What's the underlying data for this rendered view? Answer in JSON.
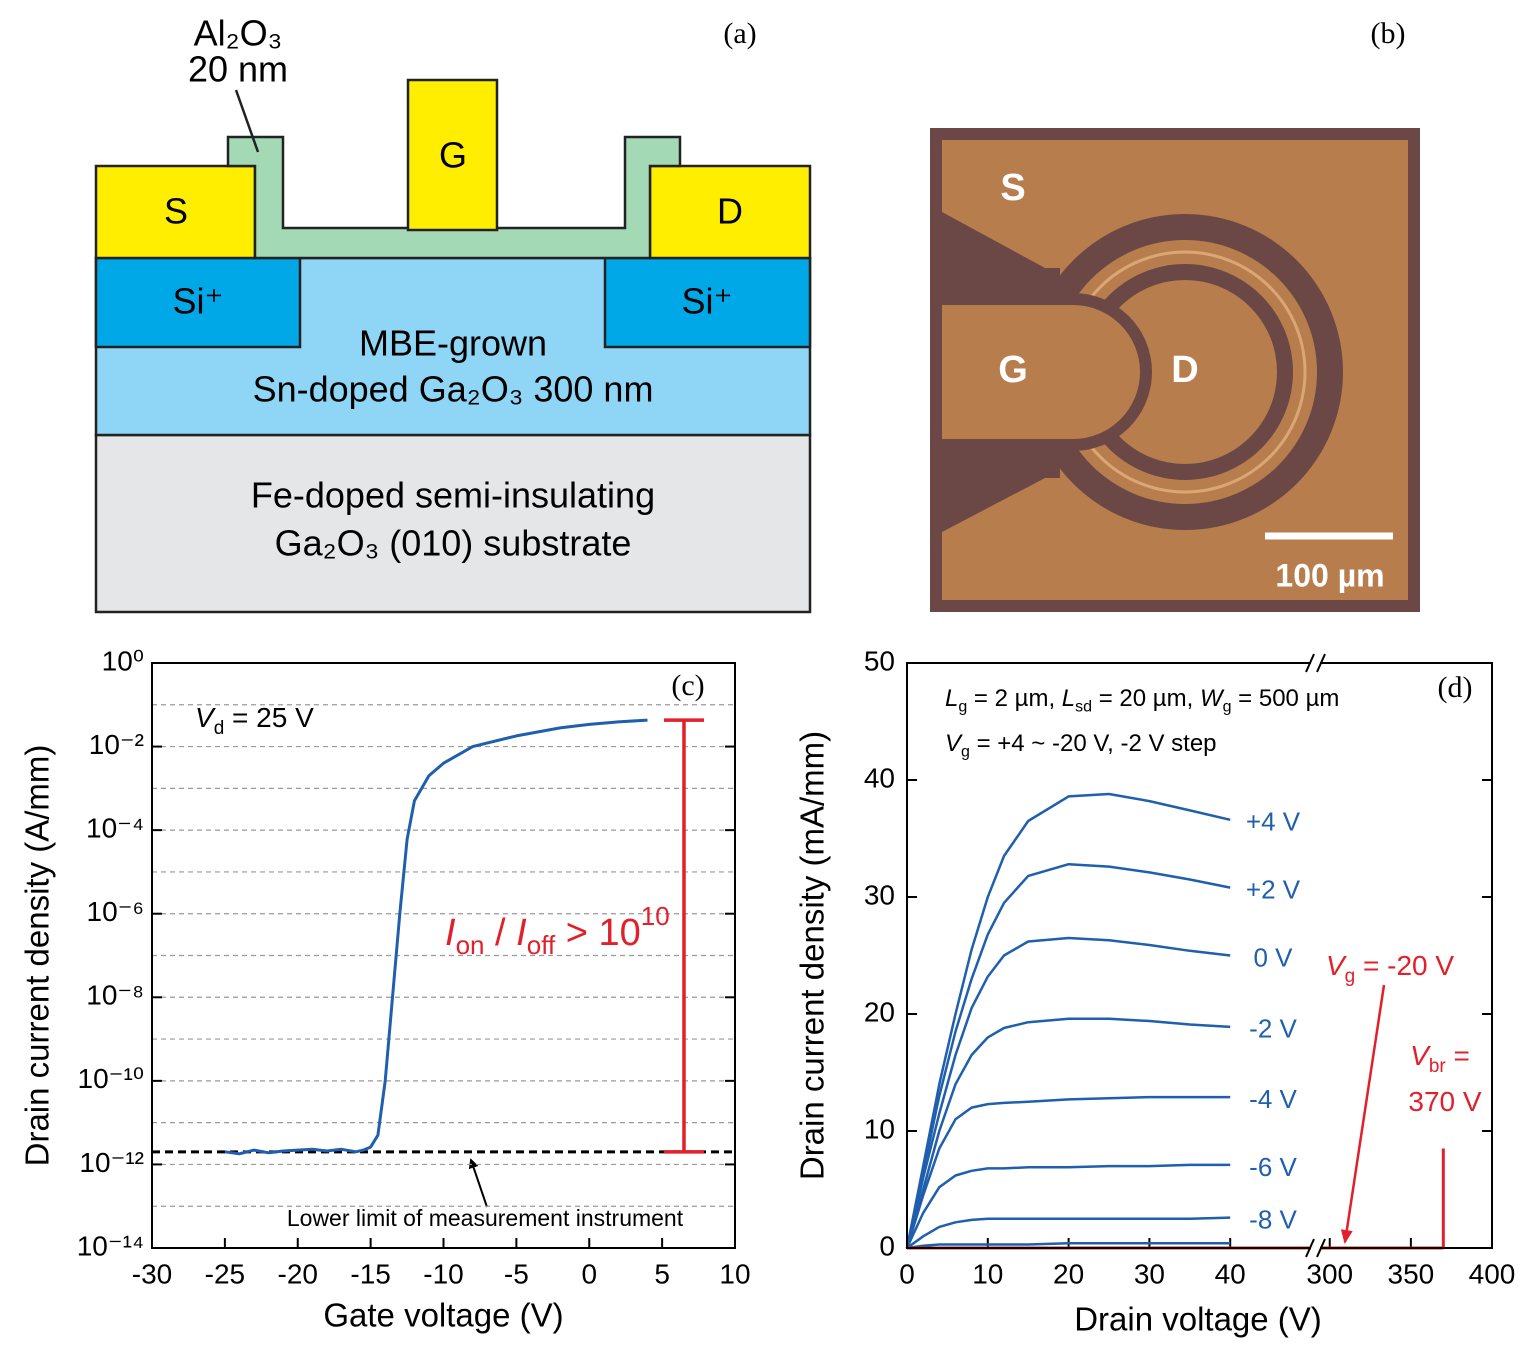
{
  "diagram": {
    "label": "(a)",
    "layers": {
      "oxide": [
        "Al₂O₃",
        "20 nm"
      ],
      "source": "S",
      "gate": "G",
      "drain": "D",
      "implant_left": "Si⁺",
      "implant_right": "Si⁺",
      "channel": [
        "MBE-grown",
        "Sn-doped Ga₂O₃ 300 nm"
      ],
      "substrate": [
        "Fe-doped semi-insulating",
        "Ga₂O₃ (010) substrate"
      ]
    }
  },
  "micrograph": {
    "label": "(b)",
    "source": "S",
    "gate": "G",
    "drain": "D",
    "scale_bar": "100 µm"
  },
  "chart_data": [
    {
      "type": "line",
      "panel_label": "(c)",
      "xlabel": "Gate voltage (V)",
      "ylabel": "Drain current density (A/mm)",
      "log_y": true,
      "grid": true,
      "xlim": [
        -30,
        10
      ],
      "xticks": [
        -30,
        -25,
        -20,
        -15,
        -10,
        -5,
        0,
        5,
        10
      ],
      "ylim": [
        1e-14,
        1
      ],
      "yticks": [
        {
          "value": 1,
          "label": "10⁰"
        },
        {
          "value": 0.01,
          "label": "10⁻²"
        },
        {
          "value": 0.0001,
          "label": "10⁻⁴"
        },
        {
          "value": 1e-06,
          "label": "10⁻⁶"
        },
        {
          "value": 1e-08,
          "label": "10⁻⁸"
        },
        {
          "value": 1e-10,
          "label": "10⁻¹⁰"
        },
        {
          "value": 1e-12,
          "label": "10⁻¹²"
        },
        {
          "value": 1e-14,
          "label": "10⁻¹⁴"
        }
      ],
      "yminorticks": [
        0.1,
        0.001,
        1e-05,
        1e-07,
        1e-09,
        1e-11,
        1e-13
      ],
      "series": [
        {
          "color": "#1f5fad",
          "x": [
            -25,
            -24,
            -23,
            -22,
            -21,
            -20,
            -19,
            -18,
            -17,
            -16,
            -15.5,
            -15,
            -14.5,
            -14,
            -13.5,
            -13,
            -12.5,
            -12,
            -11,
            -10,
            -8,
            -5,
            -2,
            0,
            2,
            4
          ],
          "values": [
            2e-12,
            1.8e-12,
            2.2e-12,
            1.9e-12,
            2.1e-12,
            2.2e-12,
            2.3e-12,
            2.1e-12,
            2.3e-12,
            2e-12,
            2.2e-12,
            2.6e-12,
            5e-12,
            1e-10,
            1e-08,
            1e-06,
            6e-05,
            0.0005,
            0.002,
            0.004,
            0.01,
            0.018,
            0.028,
            0.034,
            0.039,
            0.043
          ]
        }
      ],
      "lower_limit": {
        "value": 2e-12,
        "label": "Lower limit of measurement instrument"
      },
      "ratio": {
        "x": 6.5,
        "from": 2e-12,
        "to": 0.043,
        "color": "#e0202a"
      },
      "annotations": [
        {
          "color": "#000000",
          "segments": [
            {
              "italic": "V"
            },
            {
              "sub": "d"
            },
            {
              "text": " = 25 V"
            }
          ]
        },
        {
          "color": "#e0202a",
          "segments": [
            {
              "italic": "I"
            },
            {
              "sub": "on"
            },
            {
              "text": " / "
            },
            {
              "italic": "I"
            },
            {
              "sub": "off"
            },
            {
              "text": " > 10"
            },
            {
              "sup": "10"
            }
          ]
        }
      ]
    },
    {
      "type": "line",
      "panel_label": "(d)",
      "xlabel": "Drain voltage (V)",
      "ylabel": "Drain current density (mA/mm)",
      "xlim": [
        0,
        400
      ],
      "xbreak": [
        50,
        294
      ],
      "xticks": [
        0,
        10,
        20,
        30,
        40,
        300,
        350,
        400
      ],
      "ylim": [
        0,
        50
      ],
      "yticks": [
        0,
        10,
        20,
        30,
        40,
        50
      ],
      "x": [
        0,
        2,
        4,
        6,
        8,
        10,
        12,
        15,
        20,
        25,
        30,
        35,
        40
      ],
      "series": [
        {
          "name": "+4 V",
          "color": "#1f5fad",
          "values": [
            0,
            7,
            14,
            20,
            25.5,
            30,
            33.5,
            36.5,
            38.6,
            38.8,
            38.2,
            37.4,
            36.6
          ]
        },
        {
          "name": "+2 V",
          "color": "#1f5fad",
          "values": [
            0,
            6.5,
            13,
            18.5,
            23,
            26.8,
            29.5,
            31.8,
            32.8,
            32.6,
            32.1,
            31.5,
            30.8
          ]
        },
        {
          "name": "0 V",
          "color": "#1f5fad",
          "values": [
            0,
            6,
            11.5,
            16.5,
            20.5,
            23.2,
            25,
            26.2,
            26.5,
            26.3,
            25.9,
            25.4,
            25
          ]
        },
        {
          "name": "-2 V",
          "color": "#1f5fad",
          "values": [
            0,
            5,
            10,
            14,
            16.5,
            18,
            18.8,
            19.3,
            19.6,
            19.6,
            19.4,
            19.1,
            18.9
          ]
        },
        {
          "name": "-4 V",
          "color": "#1f5fad",
          "values": [
            0,
            4.5,
            8.5,
            11,
            12,
            12.3,
            12.4,
            12.5,
            12.7,
            12.8,
            12.9,
            12.9,
            12.9
          ]
        },
        {
          "name": "-6 V",
          "color": "#1f5fad",
          "values": [
            0,
            3,
            5.2,
            6.2,
            6.6,
            6.8,
            6.8,
            6.9,
            6.9,
            7,
            7,
            7.1,
            7.1
          ]
        },
        {
          "name": "-8 V",
          "color": "#1f5fad",
          "values": [
            0,
            1,
            1.8,
            2.2,
            2.4,
            2.5,
            2.5,
            2.5,
            2.5,
            2.5,
            2.5,
            2.5,
            2.6
          ]
        },
        {
          "color": "#1f5fad",
          "values": [
            0,
            0.2,
            0.3,
            0.3,
            0.3,
            0.3,
            0.3,
            0.3,
            0.4,
            0.4,
            0.4,
            0.4,
            0.4
          ]
        },
        {
          "color": "#e0202a",
          "x": [
            0,
            370
          ],
          "values": [
            0,
            0
          ]
        }
      ],
      "breakdown": {
        "x": 370,
        "values": [
          0,
          8.5
        ],
        "color": "#e0202a"
      },
      "annotations": [
        {
          "color": "#000000",
          "segments": [
            {
              "italic": "L"
            },
            {
              "sub": "g"
            },
            {
              "text": " = 2 µm, "
            },
            {
              "italic": "L"
            },
            {
              "sub": "sd"
            },
            {
              "text": " = 20 µm, "
            },
            {
              "italic": "W"
            },
            {
              "sub": "g"
            },
            {
              "text": " = 500 µm"
            }
          ]
        },
        {
          "color": "#000000",
          "segments": [
            {
              "italic": "V"
            },
            {
              "sub": "g"
            },
            {
              "text": " = +4 ~ -20 V, -2 V step"
            }
          ]
        },
        {
          "color": "#e0202a",
          "segments": [
            {
              "italic": "V"
            },
            {
              "sub": "g"
            },
            {
              "text": " = -20 V"
            }
          ]
        },
        {
          "color": "#e0202a",
          "segments": [
            {
              "italic": "V"
            },
            {
              "sub": "br"
            },
            {
              "text": " ="
            }
          ]
        },
        {
          "color": "#e0202a",
          "segments": [
            {
              "text": "370 V"
            }
          ]
        }
      ]
    }
  ]
}
